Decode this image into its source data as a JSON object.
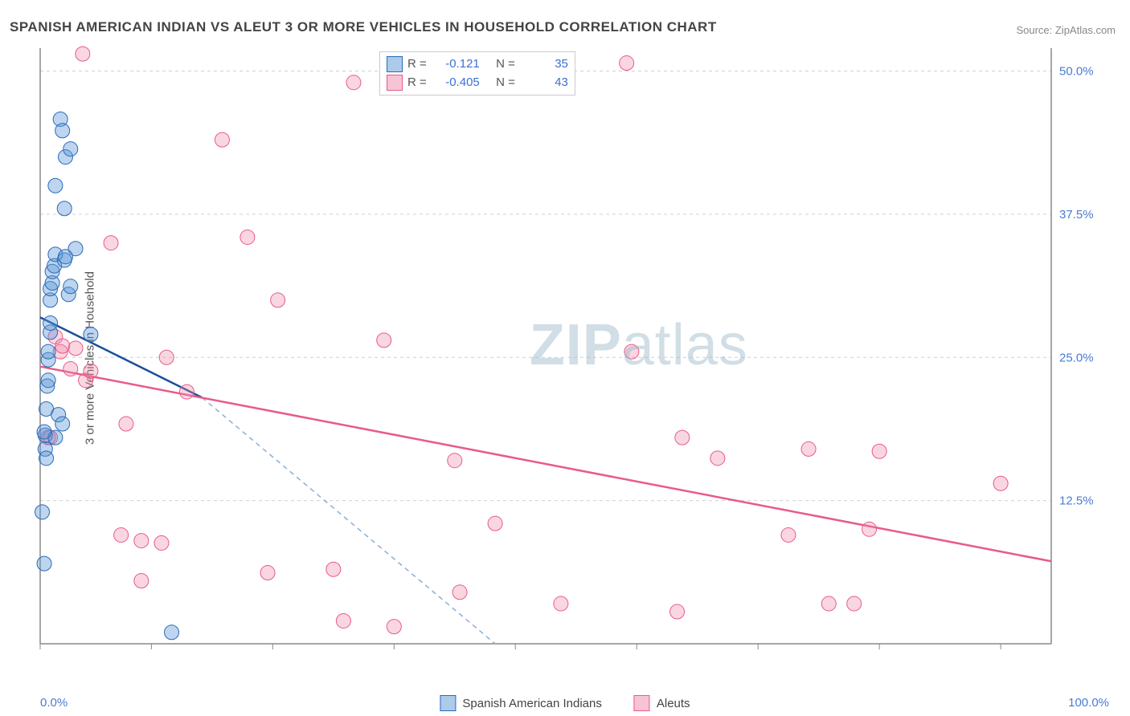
{
  "title": "SPANISH AMERICAN INDIAN VS ALEUT 3 OR MORE VEHICLES IN HOUSEHOLD CORRELATION CHART",
  "source": "Source: ZipAtlas.com",
  "watermark_bold": "ZIP",
  "watermark_rest": "atlas",
  "y_axis_label": "3 or more Vehicles in Household",
  "chart": {
    "type": "scatter",
    "xlim": [
      0,
      100
    ],
    "ylim": [
      0,
      52
    ],
    "y_ticks": [
      12.5,
      25.0,
      37.5,
      50.0
    ],
    "y_tick_labels": [
      "12.5%",
      "25.0%",
      "37.5%",
      "50.0%"
    ],
    "x_tick_positions": [
      0,
      11,
      23,
      35,
      47,
      59,
      71,
      83,
      95
    ],
    "x_end_labels": [
      "0.0%",
      "100.0%"
    ],
    "background_color": "#ffffff",
    "grid_color": "#d0d0d0",
    "point_radius": 9,
    "series": {
      "blue": {
        "label": "Spanish American Indians",
        "fill": "#5a95d6",
        "stroke": "#2a6ab8",
        "R": "-0.121",
        "N": "35",
        "trend_solid": {
          "x1": 0,
          "y1": 28.5,
          "x2": 16,
          "y2": 21.5
        },
        "trend_dash": {
          "x1": 16,
          "y1": 21.5,
          "x2": 45,
          "y2": 0
        },
        "points": [
          [
            0.2,
            11.5
          ],
          [
            0.4,
            7.0
          ],
          [
            0.5,
            17.0
          ],
          [
            0.5,
            18.2
          ],
          [
            0.6,
            20.5
          ],
          [
            0.7,
            22.5
          ],
          [
            0.8,
            23.0
          ],
          [
            0.8,
            24.8
          ],
          [
            0.8,
            25.5
          ],
          [
            1.0,
            27.2
          ],
          [
            1.0,
            28.0
          ],
          [
            1.0,
            30.0
          ],
          [
            1.0,
            31.0
          ],
          [
            1.2,
            31.5
          ],
          [
            1.2,
            32.5
          ],
          [
            1.4,
            33.0
          ],
          [
            1.5,
            34.0
          ],
          [
            1.5,
            40.0
          ],
          [
            1.8,
            20.0
          ],
          [
            2.0,
            45.8
          ],
          [
            2.2,
            44.8
          ],
          [
            2.2,
            19.2
          ],
          [
            2.4,
            33.5
          ],
          [
            2.4,
            38.0
          ],
          [
            2.5,
            33.8
          ],
          [
            2.5,
            42.5
          ],
          [
            2.8,
            30.5
          ],
          [
            3.0,
            43.2
          ],
          [
            3.0,
            31.2
          ],
          [
            3.5,
            34.5
          ],
          [
            13.0,
            1.0
          ],
          [
            5.0,
            27.0
          ],
          [
            1.5,
            18.0
          ],
          [
            0.6,
            16.2
          ],
          [
            0.4,
            18.5
          ]
        ]
      },
      "pink": {
        "label": "Aleuts",
        "fill": "#f08aa9",
        "stroke": "#e85a8a",
        "R": "-0.405",
        "N": "43",
        "trend_solid": {
          "x1": 0,
          "y1": 24.2,
          "x2": 100,
          "y2": 7.2
        },
        "points": [
          [
            0.8,
            18.0
          ],
          [
            1.0,
            18.0
          ],
          [
            1.5,
            26.8
          ],
          [
            2.0,
            25.5
          ],
          [
            2.2,
            26.0
          ],
          [
            3.0,
            24.0
          ],
          [
            3.5,
            25.8
          ],
          [
            4.2,
            51.5
          ],
          [
            4.5,
            23.0
          ],
          [
            5.0,
            23.8
          ],
          [
            7.0,
            35.0
          ],
          [
            8.0,
            9.5
          ],
          [
            8.5,
            19.2
          ],
          [
            10.0,
            9.0
          ],
          [
            10.0,
            5.5
          ],
          [
            12.0,
            8.8
          ],
          [
            12.5,
            25.0
          ],
          [
            14.5,
            22.0
          ],
          [
            18.0,
            44.0
          ],
          [
            20.5,
            35.5
          ],
          [
            22.5,
            6.2
          ],
          [
            23.5,
            30.0
          ],
          [
            29.0,
            6.5
          ],
          [
            30.0,
            2.0
          ],
          [
            31.0,
            49.0
          ],
          [
            34.0,
            26.5
          ],
          [
            35.0,
            1.5
          ],
          [
            41.0,
            16.0
          ],
          [
            41.5,
            4.5
          ],
          [
            45.0,
            10.5
          ],
          [
            51.5,
            3.5
          ],
          [
            58.0,
            50.7
          ],
          [
            58.5,
            25.5
          ],
          [
            63.0,
            2.8
          ],
          [
            63.5,
            18.0
          ],
          [
            67.0,
            16.2
          ],
          [
            74.0,
            9.5
          ],
          [
            76.0,
            17.0
          ],
          [
            78.0,
            3.5
          ],
          [
            80.5,
            3.5
          ],
          [
            82.0,
            10.0
          ],
          [
            83.0,
            16.8
          ],
          [
            95.0,
            14.0
          ]
        ]
      }
    }
  },
  "legend_stats": {
    "r_label": "R =",
    "n_label": "N ="
  }
}
